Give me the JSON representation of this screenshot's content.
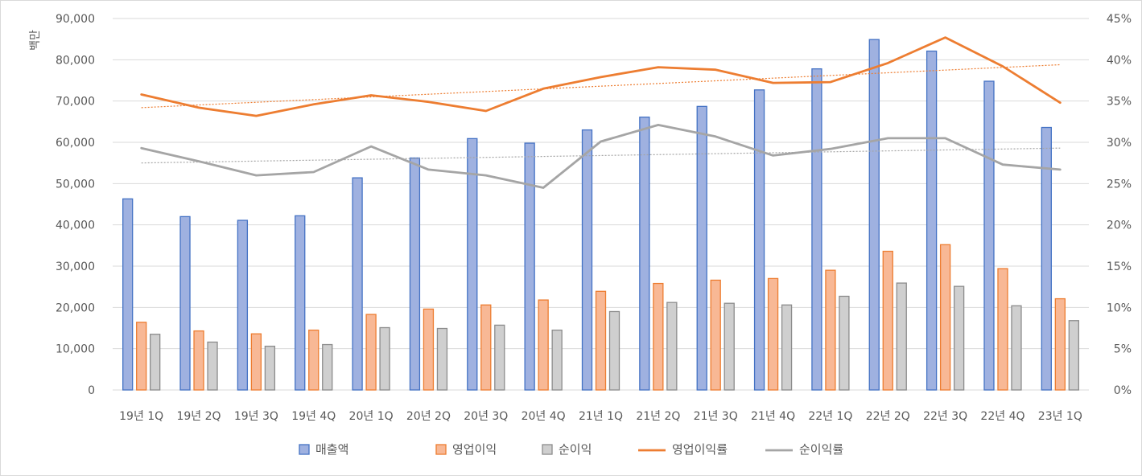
{
  "chart_data": {
    "type": "bar",
    "ylabel": "백만",
    "y_left": {
      "min": 0,
      "max": 90000,
      "ticks": [
        0,
        10000,
        20000,
        30000,
        40000,
        50000,
        60000,
        70000,
        80000,
        90000
      ]
    },
    "y_right": {
      "min": 0,
      "max": 0.45,
      "ticks": [
        "0%",
        "5%",
        "10%",
        "15%",
        "20%",
        "25%",
        "30%",
        "35%",
        "40%",
        "45%"
      ]
    },
    "grid": true,
    "legend_position": "bottom",
    "categories": [
      "19년 1Q",
      "19년 2Q",
      "19년 3Q",
      "19년 4Q",
      "20년 1Q",
      "20년 2Q",
      "20년 3Q",
      "20년 4Q",
      "21년 1Q",
      "21년 2Q",
      "21년 3Q",
      "21년 4Q",
      "22년 1Q",
      "22년 2Q",
      "22년 3Q",
      "22년 4Q",
      "23년 1Q"
    ],
    "series": [
      {
        "name": "매출액",
        "kind": "bar",
        "axis": "left",
        "color": "#4472c4",
        "fill": "#9fb1e0",
        "values": [
          46300,
          42000,
          41100,
          42200,
          51400,
          56200,
          60900,
          59800,
          63000,
          66100,
          68700,
          72700,
          77800,
          84900,
          82100,
          74800,
          63600
        ]
      },
      {
        "name": "영업이익",
        "kind": "bar",
        "axis": "left",
        "color": "#ed7d31",
        "fill": "#f8b895",
        "values": [
          16400,
          14300,
          13600,
          14500,
          18300,
          19600,
          20600,
          21800,
          23900,
          25800,
          26600,
          27000,
          29000,
          33600,
          35200,
          29400,
          22100
        ]
      },
      {
        "name": "순이익",
        "kind": "bar",
        "axis": "left",
        "color": "#8c8c8c",
        "fill": "#cfcfcf",
        "values": [
          13500,
          11600,
          10600,
          11000,
          15100,
          14900,
          15700,
          14500,
          19000,
          21200,
          21000,
          20600,
          22700,
          25900,
          25100,
          20400,
          16800
        ]
      },
      {
        "name": "영업이익률",
        "kind": "line",
        "axis": "right",
        "color": "#ed7d31",
        "values": [
          0.358,
          0.342,
          0.332,
          0.346,
          0.357,
          0.349,
          0.338,
          0.365,
          0.379,
          0.391,
          0.388,
          0.372,
          0.373,
          0.396,
          0.427,
          0.392,
          0.348
        ]
      },
      {
        "name": "순이익률",
        "kind": "line",
        "axis": "right",
        "color": "#a5a5a5",
        "values": [
          0.293,
          0.277,
          0.26,
          0.264,
          0.295,
          0.267,
          0.26,
          0.245,
          0.301,
          0.321,
          0.307,
          0.284,
          0.292,
          0.305,
          0.305,
          0.273,
          0.267
        ]
      }
    ],
    "trendlines": [
      {
        "of": "영업이익률",
        "color": "#ed7d31",
        "style": "dotted",
        "start": 0.342,
        "end": 0.394
      },
      {
        "of": "순이익률",
        "color": "#a5a5a5",
        "style": "dotted",
        "start": 0.275,
        "end": 0.293
      }
    ]
  }
}
